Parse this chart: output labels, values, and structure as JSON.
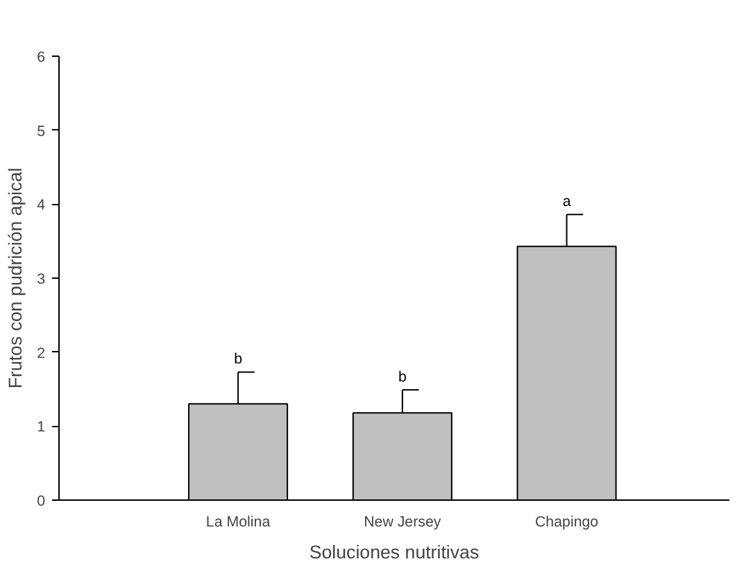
{
  "chart_data": {
    "type": "bar",
    "xlabel": "Soluciones nutritivas",
    "ylabel": "Frutos con pudrición apical",
    "categories": [
      "La Molina",
      "New Jersey",
      "Chapingo"
    ],
    "values": [
      1.3,
      1.18,
      3.43
    ],
    "color": "#c0c0c0",
    "errors": [
      [
        1.3,
        1.73
      ],
      [
        1.18,
        1.49
      ],
      [
        3.43,
        3.86
      ]
    ],
    "ylim": [
      0,
      6
    ],
    "yticks": [
      0,
      1,
      2,
      3,
      4,
      5,
      6
    ],
    "grid": false,
    "annotations": [
      {
        "text": "b",
        "x": "La Molina",
        "y": 1.73
      },
      {
        "text": "b",
        "x": "New Jersey",
        "y": 1.49
      },
      {
        "text": "a",
        "x": "Chapingo",
        "y": 3.86
      }
    ]
  }
}
